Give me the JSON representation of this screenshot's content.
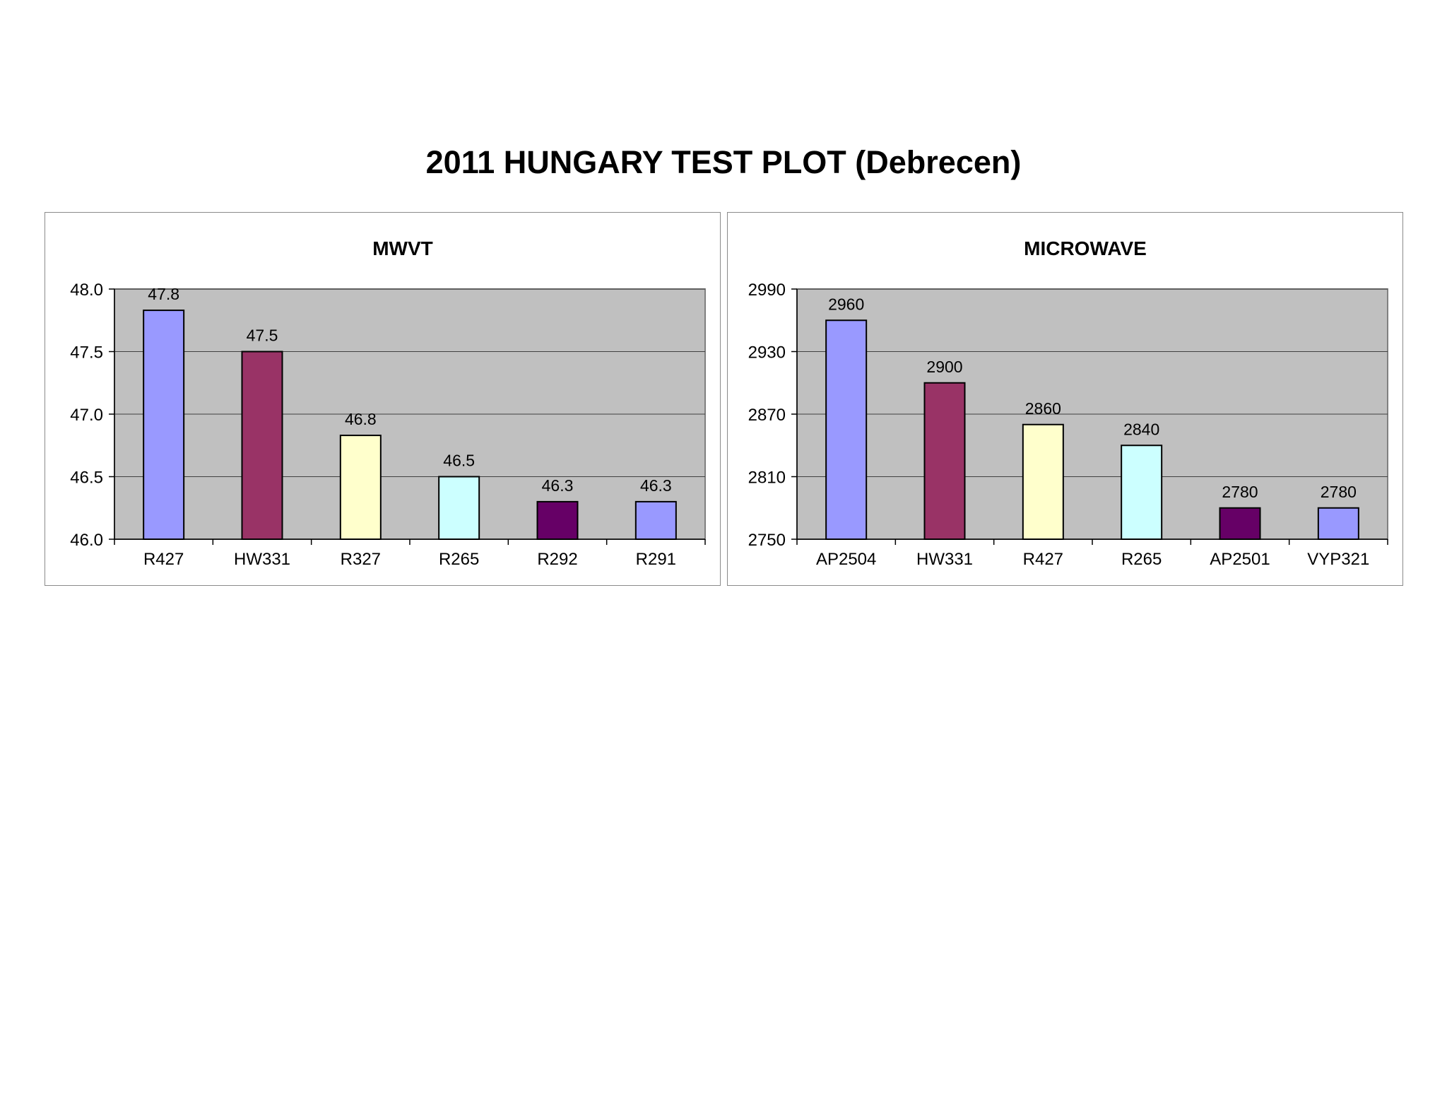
{
  "page": {
    "title": "2011 HUNGARY TEST PLOT (Debrecen)"
  },
  "colors": {
    "plot_bg": "#c0c0c0",
    "gridline": "#404040",
    "bar_outline": "#000000",
    "periwinkle": "#9999ff",
    "plum": "#993366",
    "light_yellow": "#ffffcc",
    "light_cyan": "#ccffff",
    "dark_purple": "#660066"
  },
  "chart_data": [
    {
      "type": "bar",
      "title": "MWVT",
      "categories": [
        "R427",
        "HW331",
        "R327",
        "R265",
        "R292",
        "R291"
      ],
      "values": [
        47.83,
        47.5,
        46.83,
        46.5,
        46.3,
        46.3
      ],
      "data_labels": [
        "47.8",
        "47.5",
        "46.8",
        "46.5",
        "46.3",
        "46.3"
      ],
      "bar_colors": [
        "#9999ff",
        "#993366",
        "#ffffcc",
        "#ccffff",
        "#660066",
        "#9999ff"
      ],
      "ylim": [
        46.0,
        48.0
      ],
      "yticks": [
        46.0,
        46.5,
        47.0,
        47.5,
        48.0
      ],
      "ytick_labels": [
        "46.0",
        "46.5",
        "47.0",
        "47.5",
        "48.0"
      ],
      "xlabel": "",
      "ylabel": "",
      "grid": true,
      "legend": "none"
    },
    {
      "type": "bar",
      "title": "MICROWAVE",
      "categories": [
        "AP2504",
        "HW331",
        "R427",
        "R265",
        "AP2501",
        "VYP321"
      ],
      "values": [
        2960,
        2900,
        2860,
        2840,
        2780,
        2780
      ],
      "data_labels": [
        "2960",
        "2900",
        "2860",
        "2840",
        "2780",
        "2780"
      ],
      "bar_colors": [
        "#9999ff",
        "#993366",
        "#ffffcc",
        "#ccffff",
        "#660066",
        "#9999ff"
      ],
      "ylim": [
        2750,
        2990
      ],
      "yticks": [
        2750,
        2810,
        2870,
        2930,
        2990
      ],
      "ytick_labels": [
        "2750",
        "2810",
        "2870",
        "2930",
        "2990"
      ],
      "xlabel": "",
      "ylabel": "",
      "grid": true,
      "legend": "none"
    }
  ]
}
